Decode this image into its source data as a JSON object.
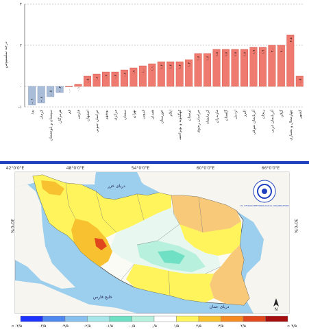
{
  "chart_data": {
    "type": "bar",
    "ylabel": "درجه سلسیوس",
    "ylim": [
      -1,
      4
    ],
    "yticks": [
      "-۱",
      "۰",
      "۲",
      "۴"
    ],
    "yticks_values": [
      -1,
      0,
      2,
      4
    ],
    "categories": [
      "یزد",
      "کرمان",
      "سیستان و بلوچستان",
      "هرمزگان",
      "قم",
      "فارس",
      "اصفهان",
      "خراسان جنوبی",
      "بوشهر",
      "مرکزی",
      "سمنان",
      "تهران",
      "قزوین",
      "همدان",
      "خوزستان",
      "ایلام",
      "کهگیلویه و بویراحمد",
      "لرستان",
      "خراسان رضوی",
      "کرمانشاه",
      "مازندران",
      "گلستان",
      "اردبیل",
      "البرز",
      "آذربایجان شرقی",
      "زنجان",
      "آذربایجان غربی",
      "گیلان",
      "چهارمحال و بختیاری",
      "کشور"
    ],
    "value_labels": [
      "-۰.۹",
      "-۰.۸",
      "-۰.۵",
      "-۰.۳",
      "۰.۰",
      "۰.۱",
      "۰.۵",
      "۰.۶",
      "۰.۷",
      "۰.۷",
      "۰.۸",
      "۰.۹",
      "۱.۰",
      "۱.۱",
      "۱.۲",
      "۱.۲",
      "۱.۲",
      "۱.۳",
      "۱.۶",
      "۱.۶",
      "۱.۸",
      "۱.۸",
      "۱.۸",
      "۱.۸",
      "۱.۹",
      "۱.۹",
      "۲.۰",
      "۲.۰",
      "۲.۵",
      "۰.۵"
    ],
    "values": [
      -0.9,
      -0.8,
      -0.5,
      -0.3,
      0.0,
      0.1,
      0.5,
      0.6,
      0.7,
      0.7,
      0.8,
      0.9,
      1.0,
      1.1,
      1.2,
      1.2,
      1.2,
      1.3,
      1.6,
      1.6,
      1.8,
      1.8,
      1.8,
      1.8,
      1.9,
      1.9,
      2.0,
      2.0,
      2.5,
      0.5
    ],
    "colors": {
      "positive": "#ef7b70",
      "negative": "#a9bcd8",
      "positive_stroke": "#cc4b40",
      "negative_stroke": "#7b8fb5"
    }
  },
  "map": {
    "top_labels": [
      "42°0'0\"E",
      "48°0'0\"E",
      "54°0'0\"E",
      "60°0'0\"E",
      "66°0'0\"E"
    ],
    "side_labels": [
      "30°0'N",
      "30°0'N"
    ],
    "caspian_label": "دریای خزر",
    "gulf_label": "خلیج فارس",
    "oman_label": "دریای عمان",
    "north_symbol": "N",
    "logo_text": "I.R. OF IRAN METEOROLOGICAL ORGANIZATION"
  },
  "legend": {
    "labels": [
      "< -۴/۵",
      "-۴/۵",
      "-۳/۵",
      "-۲/۵",
      "-۱/۵",
      "-۰/۵",
      "۰/۵",
      "۱/۵",
      "۲/۵",
      "۳/۵",
      "۴/۵",
      "> ۴/۵"
    ],
    "colors": [
      "#1f33ff",
      "#4f88ef",
      "#87bfee",
      "#a6e6e8",
      "#6fe0c4",
      "#b7f0dc",
      "#ffffff",
      "#fff45c",
      "#f7c12f",
      "#f58a22",
      "#e0471d",
      "#a60f0f"
    ]
  }
}
